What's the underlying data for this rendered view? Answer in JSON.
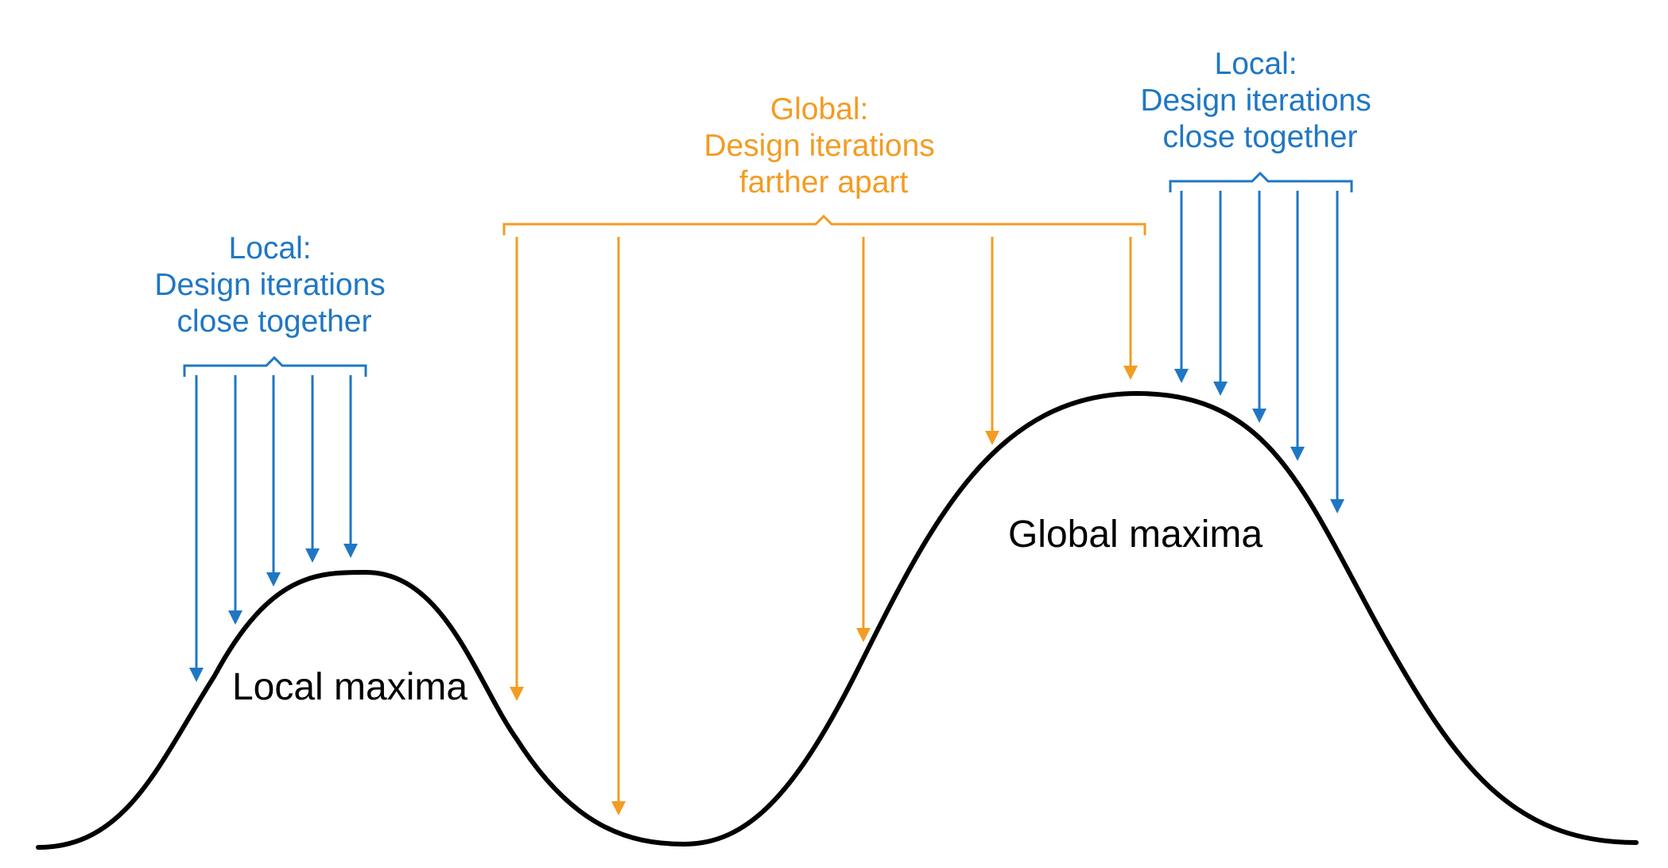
{
  "colors": {
    "curve": "#000000",
    "local": "#1f77c4",
    "global": "#f39c23"
  },
  "local_left": {
    "label_lines": [
      "Local:",
      "Design iterations",
      "close together"
    ]
  },
  "global": {
    "label_lines": [
      "Global:",
      "Design iterations",
      "farther apart"
    ]
  },
  "local_right": {
    "label_lines": [
      "Local:",
      "Design iterations",
      "close together"
    ]
  },
  "peaks": {
    "local": "Local maxima",
    "global": "Global maxima"
  }
}
